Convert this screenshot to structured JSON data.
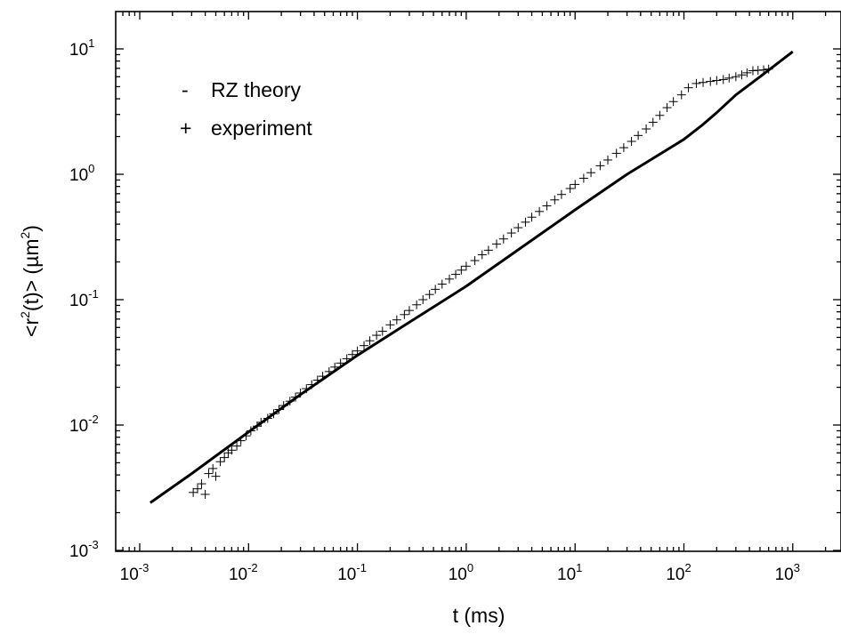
{
  "chart_data": {
    "type": "scatter",
    "xlabel": "t (ms)",
    "ylabel": "<r²(t)>  (µm²)",
    "ylabel_parts": {
      "pre": "<r",
      "sup1": "2",
      "mid": "(t)>  (µm",
      "sup2": "2",
      "post": ")"
    },
    "xscale": "log",
    "yscale": "log",
    "xlim": [
      0.0004,
      3000
    ],
    "ylim": [
      0.001,
      20
    ],
    "x_ticks": [
      {
        "value": 0.001,
        "base": "10",
        "exp": "-3"
      },
      {
        "value": 0.01,
        "base": "10",
        "exp": "-2"
      },
      {
        "value": 0.1,
        "base": "10",
        "exp": "-1"
      },
      {
        "value": 1,
        "base": "10",
        "exp": "0"
      },
      {
        "value": 10,
        "base": "10",
        "exp": "1"
      },
      {
        "value": 100,
        "base": "10",
        "exp": "2"
      },
      {
        "value": 1000,
        "base": "10",
        "exp": "3"
      }
    ],
    "y_ticks": [
      {
        "value": 0.001,
        "base": "10",
        "exp": "-3"
      },
      {
        "value": 0.01,
        "base": "10",
        "exp": "-2"
      },
      {
        "value": 0.1,
        "base": "10",
        "exp": "-1"
      },
      {
        "value": 1,
        "base": "10",
        "exp": "0"
      },
      {
        "value": 10,
        "base": "10",
        "exp": "1"
      }
    ],
    "grid": false,
    "legend": {
      "position": "top-left",
      "entries": [
        {
          "marker": "-",
          "label": "RZ theory"
        },
        {
          "marker": "+",
          "label": "experiment"
        }
      ]
    },
    "series": [
      {
        "label": "RZ theory",
        "style": "line",
        "color": "#000000",
        "x": [
          0.00125,
          0.003,
          0.01,
          0.03,
          0.1,
          0.3,
          1,
          3,
          10,
          30,
          100,
          150,
          200,
          300,
          500,
          1000
        ],
        "y": [
          0.0024,
          0.0041,
          0.0088,
          0.0175,
          0.036,
          0.066,
          0.128,
          0.25,
          0.52,
          1.0,
          1.9,
          2.5,
          3.1,
          4.3,
          6.0,
          9.5
        ]
      },
      {
        "label": "experiment",
        "style": "plus",
        "color": "#000000",
        "x": [
          0.0031,
          0.0034,
          0.0037,
          0.004,
          0.0043,
          0.0047,
          0.005,
          0.0055,
          0.006,
          0.0065,
          0.007,
          0.0078,
          0.0085,
          0.0095,
          0.0105,
          0.012,
          0.013,
          0.015,
          0.017,
          0.019,
          0.021,
          0.024,
          0.027,
          0.03,
          0.034,
          0.038,
          0.043,
          0.048,
          0.055,
          0.062,
          0.07,
          0.08,
          0.09,
          0.1,
          0.115,
          0.13,
          0.15,
          0.17,
          0.2,
          0.23,
          0.27,
          0.3,
          0.35,
          0.4,
          0.46,
          0.52,
          0.6,
          0.7,
          0.8,
          0.9,
          1.0,
          1.2,
          1.4,
          1.6,
          1.9,
          2.2,
          2.6,
          3.0,
          3.5,
          4.0,
          4.7,
          5.5,
          6.5,
          7.5,
          9.0,
          10,
          12,
          14,
          17,
          20,
          24,
          28,
          33,
          38,
          45,
          52,
          60,
          70,
          80,
          95,
          110,
          130,
          150,
          175,
          200,
          230,
          260,
          300,
          340,
          380,
          430,
          480,
          540,
          600
        ],
        "y": [
          0.0029,
          0.0031,
          0.0034,
          0.0028,
          0.0041,
          0.0045,
          0.0039,
          0.0051,
          0.0055,
          0.006,
          0.0063,
          0.0068,
          0.0075,
          0.0082,
          0.009,
          0.0098,
          0.0105,
          0.0113,
          0.0123,
          0.0133,
          0.0143,
          0.0155,
          0.0167,
          0.018,
          0.0195,
          0.021,
          0.0228,
          0.0245,
          0.0267,
          0.029,
          0.0312,
          0.0338,
          0.0365,
          0.039,
          0.043,
          0.047,
          0.052,
          0.056,
          0.063,
          0.069,
          0.076,
          0.082,
          0.091,
          0.1,
          0.11,
          0.121,
          0.133,
          0.146,
          0.159,
          0.172,
          0.185,
          0.205,
          0.228,
          0.248,
          0.278,
          0.305,
          0.34,
          0.375,
          0.415,
          0.455,
          0.505,
          0.56,
          0.625,
          0.69,
          0.77,
          0.83,
          0.93,
          1.03,
          1.17,
          1.3,
          1.47,
          1.63,
          1.83,
          2.04,
          2.3,
          2.6,
          2.95,
          3.4,
          3.8,
          4.3,
          4.9,
          5.3,
          5.4,
          5.5,
          5.6,
          5.7,
          5.85,
          6.0,
          6.2,
          6.45,
          6.7,
          6.75,
          6.8,
          6.9
        ]
      }
    ]
  }
}
